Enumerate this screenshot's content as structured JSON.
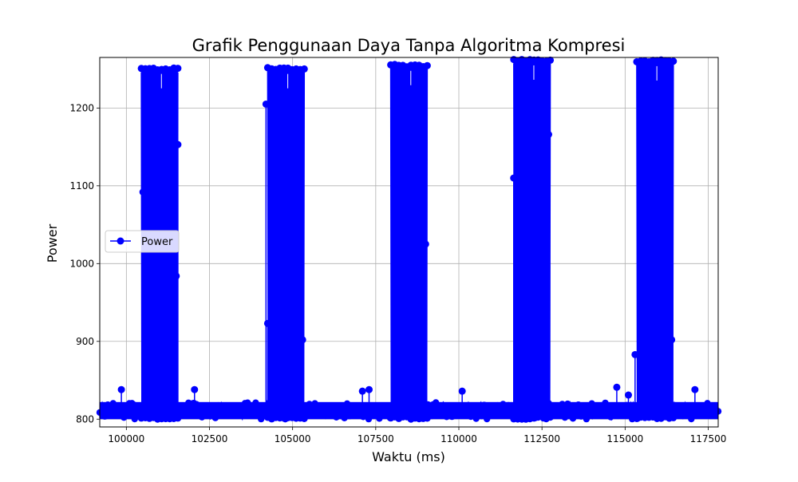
{
  "chart_data": {
    "type": "line",
    "title": "Grafik Penggunaan Daya Tanpa Algoritma Kompresi",
    "xlabel": "Waktu (ms)",
    "ylabel": "Power",
    "xlim": [
      99200,
      117800
    ],
    "ylim": [
      790,
      1265
    ],
    "xticks": [
      100000,
      102500,
      105000,
      107500,
      110000,
      112500,
      115000,
      117500
    ],
    "xtick_labels": [
      "100000",
      "102500",
      "105000",
      "107500",
      "110000",
      "112500",
      "115000",
      "117500"
    ],
    "yticks": [
      800,
      900,
      1000,
      1100,
      1200
    ],
    "ytick_labels": [
      "800",
      "900",
      "1000",
      "1100",
      "1200"
    ],
    "grid": true,
    "legend_position": "center-left",
    "series": [
      {
        "name": "Power",
        "color": "#0000ff",
        "marker": "circle",
        "baseline": {
          "x_range": [
            99200,
            117800
          ],
          "values": [
            800,
            822
          ]
        },
        "bursts": [
          {
            "x_start": 100450,
            "x_end": 101550,
            "low": 800,
            "high": 1252
          },
          {
            "x_start": 104250,
            "x_end": 105350,
            "low": 800,
            "high": 1252
          },
          {
            "x_start": 107950,
            "x_end": 109050,
            "low": 800,
            "high": 1256
          },
          {
            "x_start": 111650,
            "x_end": 112750,
            "low": 800,
            "high": 1263
          },
          {
            "x_start": 115350,
            "x_end": 116450,
            "low": 800,
            "high": 1262
          }
        ],
        "outliers": [
          {
            "x": 99850,
            "y": 838
          },
          {
            "x": 102050,
            "y": 838
          },
          {
            "x": 107100,
            "y": 836
          },
          {
            "x": 107300,
            "y": 838
          },
          {
            "x": 110100,
            "y": 836
          },
          {
            "x": 114750,
            "y": 841
          },
          {
            "x": 115100,
            "y": 831
          },
          {
            "x": 117100,
            "y": 838
          },
          {
            "x": 100500,
            "y": 1092
          },
          {
            "x": 101500,
            "y": 984
          },
          {
            "x": 101550,
            "y": 1153
          },
          {
            "x": 104200,
            "y": 1205
          },
          {
            "x": 104250,
            "y": 923
          },
          {
            "x": 105300,
            "y": 902
          },
          {
            "x": 108950,
            "y": 1133
          },
          {
            "x": 109000,
            "y": 1025
          },
          {
            "x": 111650,
            "y": 1110
          },
          {
            "x": 112700,
            "y": 1166
          },
          {
            "x": 115300,
            "y": 883
          },
          {
            "x": 116400,
            "y": 902
          }
        ]
      }
    ]
  }
}
